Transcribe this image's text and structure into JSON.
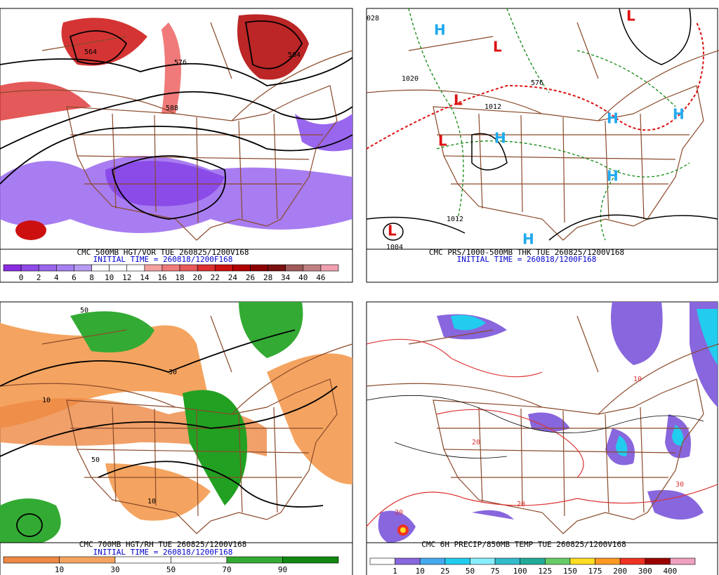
{
  "panels": [
    {
      "title": "CMC 500MB HGT/VOR TUE 260825/1200V168",
      "initial_time": "INITIAL TIME = 260818/1200F168",
      "colorbar": {
        "labels": [
          0,
          2,
          4,
          6,
          8,
          10,
          12,
          14,
          16,
          18,
          20,
          22,
          24,
          26,
          28,
          34,
          40,
          46
        ],
        "colors": [
          "#8a2be2",
          "#8f4be8",
          "#9966ee",
          "#a77ff0",
          "#b79bf2",
          "#ffffff",
          "#ffffff",
          "#ffffff",
          "#f5a0a0",
          "#f07a7a",
          "#e85a5a",
          "#dd3030",
          "#cc1010",
          "#b00000",
          "#8b0000",
          "#7a1010",
          "#a05a5a",
          "#c08080",
          "#f0a0b0"
        ]
      },
      "map_labels": [
        "564",
        "576",
        "588",
        "564"
      ]
    },
    {
      "title": "CMC PRS/1000-500MB THK TUE 260825/1200V168",
      "initial_time": "INITIAL TIME = 260818/1200F168",
      "map_labels": [
        "H",
        "H",
        "H",
        "H",
        "H",
        "H",
        "L",
        "L",
        "L",
        "L",
        "L",
        "1020",
        "1012",
        "1004",
        "576",
        "028",
        "1012"
      ]
    },
    {
      "title": "CMC 700MB HGT/RH TUE 260825/1200V168",
      "initial_time": "INITIAL TIME = 260818/1200F168",
      "colorbar": {
        "labels": [
          10,
          30,
          50,
          70,
          90
        ],
        "colors": [
          "#ee8844",
          "#f4a460",
          "#ffffff",
          "#ffffff",
          "#33aa33",
          "#118811"
        ]
      },
      "map_labels": [
        "50",
        "10",
        "30",
        "50",
        "10"
      ]
    },
    {
      "title": "CMC 6H PRECIP/850MB TEMP TUE 260825/1200V168",
      "colorbar": {
        "labels": [
          1,
          10,
          25,
          50,
          75,
          100,
          125,
          150,
          175,
          200,
          300,
          400
        ],
        "colors": [
          "#ffffff",
          "#8866dd",
          "#44aaee",
          "#22ccee",
          "#88eeff",
          "#33bbcc",
          "#22aa99",
          "#66cc66",
          "#ffdd22",
          "#ff9922",
          "#ee3322",
          "#990000",
          "#f0a0c0"
        ]
      },
      "map_labels": [
        "20",
        "20",
        "10",
        "30",
        "20"
      ]
    }
  ]
}
